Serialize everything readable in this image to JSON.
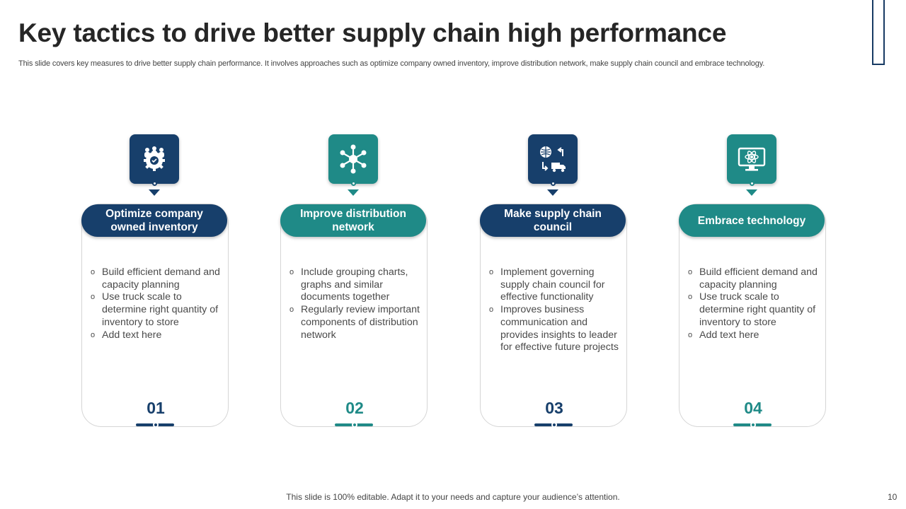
{
  "slide": {
    "title": "Key tactics to drive better supply chain high performance",
    "subtitle": "This slide covers key measures to drive better supply chain performance. It involves approaches such as optimize company owned inventory, improve distribution network, make supply chain council and embrace technology.",
    "footer": "This slide is 100% editable. Adapt it to your needs and capture your audience’s attention.",
    "page_number": "10"
  },
  "colors": {
    "navy": "#173f6b",
    "teal": "#1f8a87",
    "text": "#4a4a4a"
  },
  "cards": [
    {
      "number": "01",
      "header": "Optimize company owned inventory",
      "icon": "team-gear-icon",
      "color": "navy",
      "bullets": [
        "Build efficient demand and capacity planning",
        "Use truck scale to determine right quantity of inventory to store",
        "Add text here"
      ]
    },
    {
      "number": "02",
      "header": "Improve distribution network",
      "icon": "network-hub-icon",
      "color": "teal",
      "bullets": [
        "Include grouping charts, graphs and similar documents together",
        "Regularly review important components of distribution network"
      ]
    },
    {
      "number": "03",
      "header": "Make supply chain council",
      "icon": "global-shipping-icon",
      "color": "navy",
      "bullets": [
        "Implement governing supply chain council for effective functionality",
        "Improves business communication and provides insights to leader for effective future projects"
      ]
    },
    {
      "number": "04",
      "header": "Embrace technology",
      "icon": "monitor-atom-icon",
      "color": "teal",
      "bullets": [
        "Build efficient demand and capacity planning",
        "Use truck scale to determine right quantity of inventory to store",
        "Add text here"
      ]
    }
  ]
}
